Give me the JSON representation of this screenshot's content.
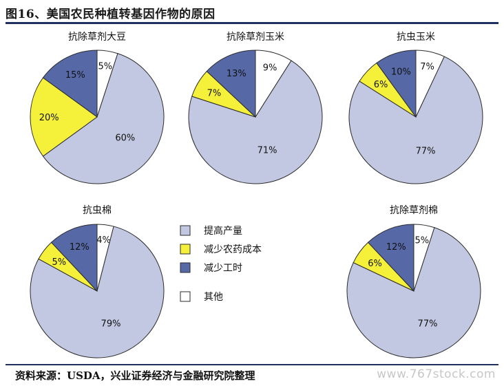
{
  "figure_title": "图16、美国农民种植转基因作物的原因",
  "source_note": "资料来源：USDA，兴业证券经济与金融研究院整理",
  "watermark": "www.767stock.com",
  "colors": {
    "提高产量": "#c2c8e2",
    "减少农药成本": "#f5f03a",
    "减少工时": "#5668a6",
    "其他": "#ffffff",
    "slice_edge": "#2a2a2a",
    "rule": "#1f2f5e"
  },
  "chart_data": [
    {
      "type": "pie",
      "title": "抗除草剂大豆",
      "categories": [
        "提高产量",
        "减少农药成本",
        "减少工时",
        "其他"
      ],
      "values": [
        60,
        20,
        15,
        5
      ],
      "labels": [
        "60%",
        "20%",
        "15%",
        "5%"
      ]
    },
    {
      "type": "pie",
      "title": "抗除草剂玉米",
      "categories": [
        "提高产量",
        "减少农药成本",
        "减少工时",
        "其他"
      ],
      "values": [
        71,
        7,
        13,
        9
      ],
      "labels": [
        "71%",
        "7%",
        "13%",
        "9%"
      ]
    },
    {
      "type": "pie",
      "title": "抗虫玉米",
      "categories": [
        "提高产量",
        "减少农药成本",
        "减少工时",
        "其他"
      ],
      "values": [
        77,
        6,
        10,
        7
      ],
      "labels": [
        "77%",
        "6%",
        "10%",
        "7%"
      ]
    },
    {
      "type": "pie",
      "title": "抗虫棉",
      "categories": [
        "提高产量",
        "减少农药成本",
        "减少工时",
        "其他"
      ],
      "values": [
        79,
        5,
        12,
        4
      ],
      "labels": [
        "79%",
        "5%",
        "12%",
        "4%"
      ]
    },
    {
      "type": "pie",
      "title": "抗除草剂棉",
      "categories": [
        "提高产量",
        "减少农药成本",
        "减少工时",
        "其他"
      ],
      "values": [
        77,
        6,
        12,
        5
      ],
      "labels": [
        "77%",
        "6%",
        "12%",
        "5%"
      ]
    }
  ],
  "legend": [
    "提高产量",
    "减少农药成本",
    "减少工时",
    "其他"
  ]
}
